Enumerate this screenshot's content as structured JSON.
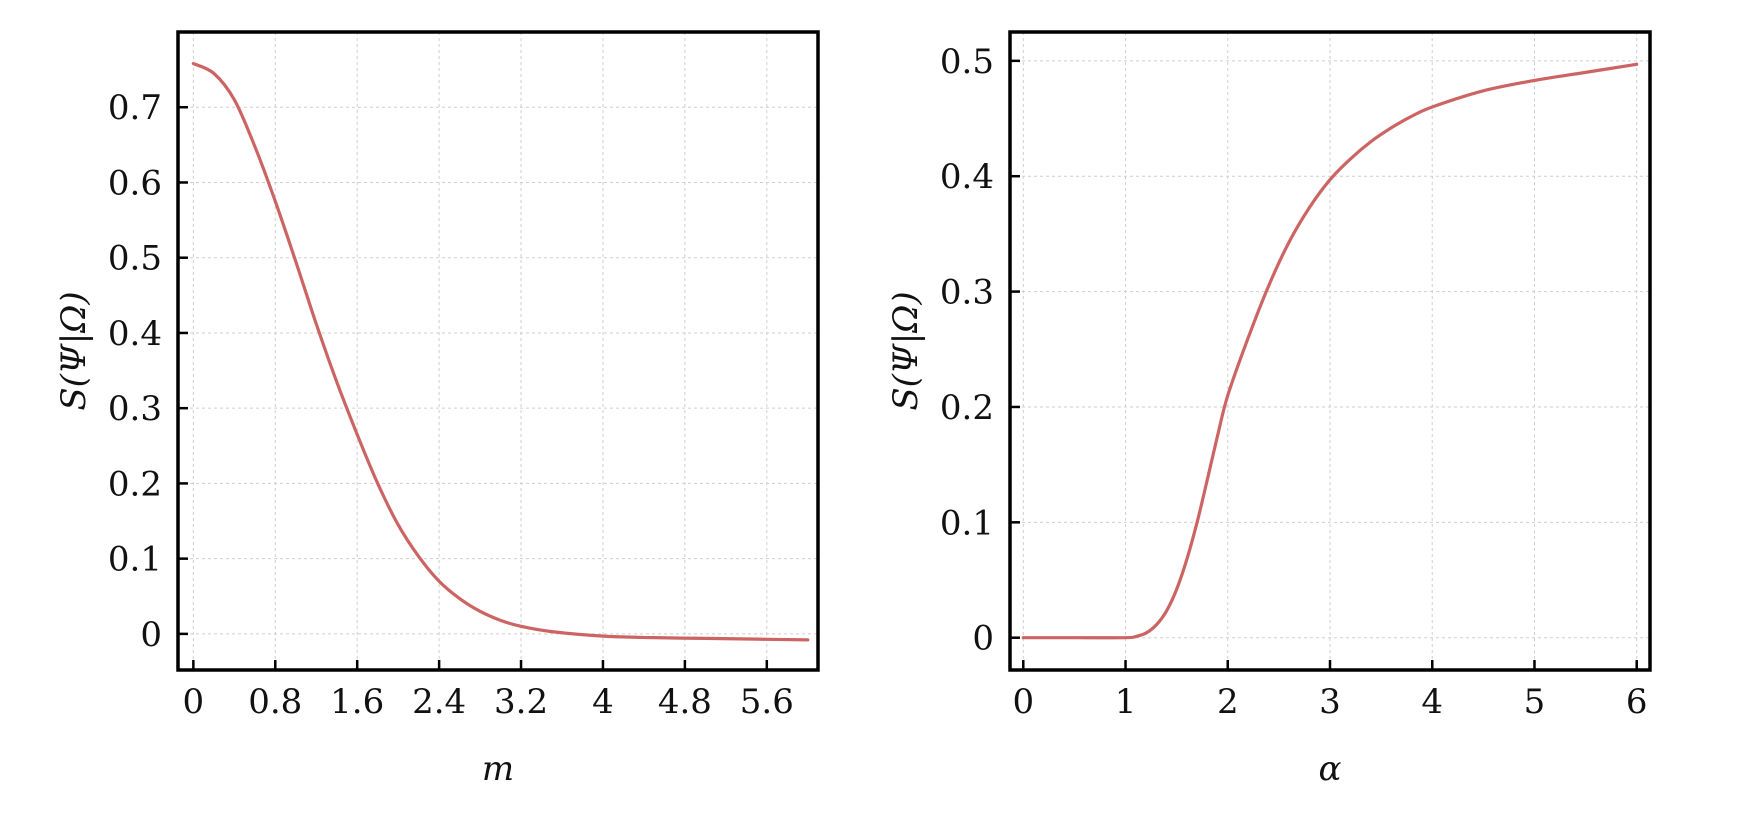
{
  "colors": {
    "curve": "#cd6464",
    "frame": "#000000",
    "grid": "#cfcfcf"
  },
  "chart_data": [
    {
      "type": "line",
      "title": "",
      "xlabel": "m",
      "ylabel": "S(Ψ|Ω)",
      "xlim": [
        -0.15,
        6.1
      ],
      "ylim": [
        -0.048,
        0.8
      ],
      "xticks": [
        0,
        0.8,
        1.6,
        2.4,
        3.2,
        4,
        4.8,
        5.6
      ],
      "xtick_labels": [
        "0",
        "0.8",
        "1.6",
        "2.4",
        "3.2",
        "4",
        "4.8",
        "5.6"
      ],
      "yticks": [
        0,
        0.1,
        0.2,
        0.3,
        0.4,
        0.5,
        0.6,
        0.7
      ],
      "ytick_labels": [
        "0",
        "0.1",
        "0.2",
        "0.3",
        "0.4",
        "0.5",
        "0.6",
        "0.7"
      ],
      "grid": true,
      "series": [
        {
          "x": [
            0,
            0.2,
            0.4,
            0.6,
            0.8,
            1.0,
            1.2,
            1.4,
            1.6,
            1.8,
            2.0,
            2.2,
            2.4,
            2.6,
            2.8,
            3.0,
            3.2,
            3.5,
            4.0,
            4.5,
            5.0,
            5.5,
            6.0
          ],
          "y": [
            0.758,
            0.745,
            0.71,
            0.648,
            0.575,
            0.495,
            0.412,
            0.335,
            0.265,
            0.2,
            0.145,
            0.103,
            0.07,
            0.047,
            0.03,
            0.018,
            0.01,
            0.003,
            -0.003,
            -0.005,
            -0.006,
            -0.007,
            -0.008
          ]
        }
      ]
    },
    {
      "type": "line",
      "title": "",
      "xlabel": "α",
      "ylabel": "S(Ψ|Ω)",
      "xlim": [
        -0.13,
        6.13
      ],
      "ylim": [
        -0.028,
        0.525
      ],
      "xticks": [
        0,
        1,
        2,
        3,
        4,
        5,
        6
      ],
      "xtick_labels": [
        "0",
        "1",
        "2",
        "3",
        "4",
        "5",
        "6"
      ],
      "yticks": [
        0,
        0.1,
        0.2,
        0.3,
        0.4,
        0.5
      ],
      "ytick_labels": [
        "0",
        "0.1",
        "0.2",
        "0.3",
        "0.4",
        "0.5"
      ],
      "grid": true,
      "series": [
        {
          "x": [
            0,
            0.5,
            1.0,
            1.1,
            1.2,
            1.3,
            1.4,
            1.5,
            1.6,
            1.7,
            1.8,
            1.9,
            2.0,
            2.2,
            2.4,
            2.6,
            2.8,
            3.0,
            3.2,
            3.4,
            3.6,
            3.8,
            4.0,
            4.5,
            5.0,
            5.5,
            6.0
          ],
          "y": [
            0,
            0,
            0,
            0.001,
            0.004,
            0.011,
            0.023,
            0.042,
            0.068,
            0.1,
            0.137,
            0.175,
            0.21,
            0.26,
            0.305,
            0.343,
            0.373,
            0.397,
            0.415,
            0.43,
            0.442,
            0.452,
            0.46,
            0.474,
            0.483,
            0.49,
            0.497
          ]
        }
      ]
    }
  ]
}
